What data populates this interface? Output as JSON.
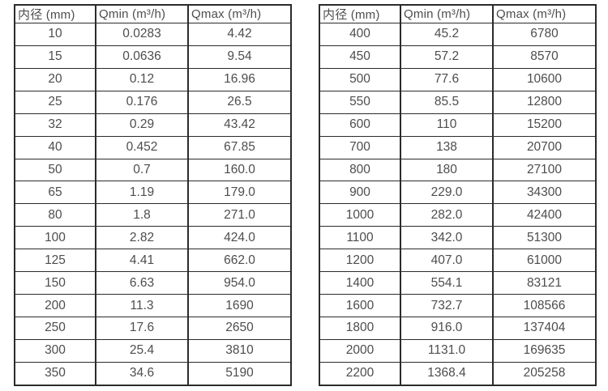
{
  "colors": {
    "background": "#ffffff",
    "border": "#2b2b2b",
    "text": "#4d4d4d"
  },
  "tables": [
    {
      "name": "spec-table-small-diameters",
      "headers": [
        "内径 (mm)",
        "Qmin (m³/h)",
        "Qmax (m³/h)"
      ],
      "rows": [
        [
          "10",
          "0.0283",
          "4.42"
        ],
        [
          "15",
          "0.0636",
          "9.54"
        ],
        [
          "20",
          "0.12",
          "16.96"
        ],
        [
          "25",
          "0.176",
          "26.5"
        ],
        [
          "32",
          "0.29",
          "43.42"
        ],
        [
          "40",
          "0.452",
          "67.85"
        ],
        [
          "50",
          "0.7",
          "160.0"
        ],
        [
          "65",
          "1.19",
          "179.0"
        ],
        [
          "80",
          "1.8",
          "271.0"
        ],
        [
          "100",
          "2.82",
          "424.0"
        ],
        [
          "125",
          "4.41",
          "662.0"
        ],
        [
          "150",
          "6.63",
          "954.0"
        ],
        [
          "200",
          "11.3",
          "1690"
        ],
        [
          "250",
          "17.6",
          "2650"
        ],
        [
          "300",
          "25.4",
          "3810"
        ],
        [
          "350",
          "34.6",
          "5190"
        ]
      ]
    },
    {
      "name": "spec-table-large-diameters",
      "headers": [
        "内径 (mm)",
        "Qmin (m³/h)",
        "Qmax (m³/h)"
      ],
      "rows": [
        [
          "400",
          "45.2",
          "6780"
        ],
        [
          "450",
          "57.2",
          "8570"
        ],
        [
          "500",
          "77.6",
          "10600"
        ],
        [
          "550",
          "85.5",
          "12800"
        ],
        [
          "600",
          "110",
          "15200"
        ],
        [
          "700",
          "138",
          "20700"
        ],
        [
          "800",
          "180",
          "27100"
        ],
        [
          "900",
          "229.0",
          "34300"
        ],
        [
          "1000",
          "282.0",
          "42400"
        ],
        [
          "1100",
          "342.0",
          "51300"
        ],
        [
          "1200",
          "407.0",
          "61000"
        ],
        [
          "1400",
          "554.1",
          "83121"
        ],
        [
          "1600",
          "732.7",
          "108566"
        ],
        [
          "1800",
          "916.0",
          "137404"
        ],
        [
          "2000",
          "1131.0",
          "169635"
        ],
        [
          "2200",
          "1368.4",
          "205258"
        ]
      ]
    }
  ]
}
